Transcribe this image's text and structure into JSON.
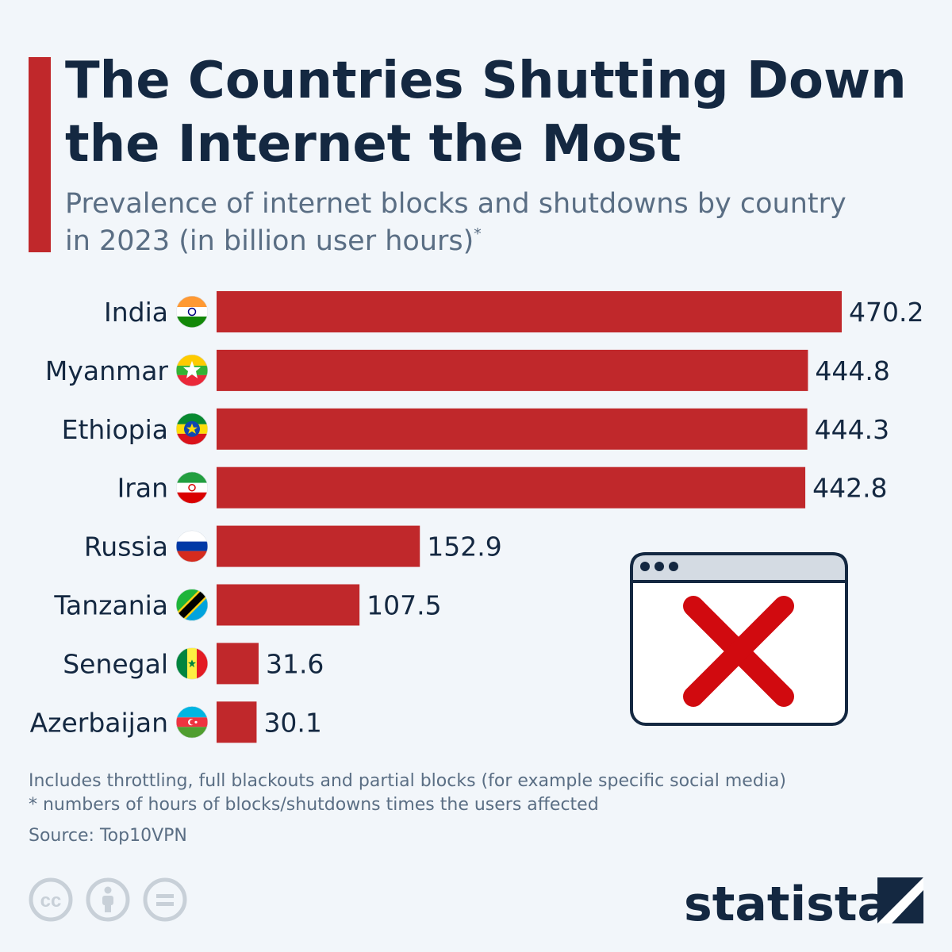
{
  "header": {
    "title": "The Countries Shutting Down the Internet the Most",
    "subtitle": "Prevalence of internet blocks and shutdowns by country in 2023 (in billion user hours)",
    "subtitle_mark": "*"
  },
  "chart_data": {
    "type": "bar",
    "orientation": "horizontal",
    "title": "The Countries Shutting Down the Internet the Most",
    "subtitle": "Prevalence of internet blocks and shutdowns by country in 2023 (in billion user hours)*",
    "categories": [
      "India",
      "Myanmar",
      "Ethiopia",
      "Iran",
      "Russia",
      "Tanzania",
      "Senegal",
      "Azerbaijan"
    ],
    "values": [
      470.2,
      444.8,
      444.3,
      442.8,
      152.9,
      107.5,
      31.6,
      30.1
    ],
    "value_labels": [
      "470.2",
      "444.8",
      "444.3",
      "442.8",
      "152.9",
      "107.5",
      "31.6",
      "30.1"
    ],
    "flag_icons": [
      "india-flag-icon",
      "myanmar-flag-icon",
      "ethiopia-flag-icon",
      "iran-flag-icon",
      "russia-flag-icon",
      "tanzania-flag-icon",
      "senegal-flag-icon",
      "azerbaijan-flag-icon"
    ],
    "xlim": [
      0,
      470.2
    ],
    "bar_color": "#c0282b",
    "grid": false,
    "legend": "none"
  },
  "illustration": {
    "icon": "blocked-browser-window-icon",
    "cross_color": "#d10a0f"
  },
  "footer": {
    "note": "Includes throttling, full blackouts and partial blocks (for example specific social media)",
    "asterisk_note": "* numbers of hours of blocks/shutdowns times the users affected",
    "source": "Source: Top10VPN",
    "license_icons": [
      "creative-commons-icon",
      "attribution-icon",
      "no-derivatives-icon"
    ],
    "brand": "statista"
  },
  "colors": {
    "title": "#142841",
    "subtitle": "#5a6e84",
    "accent": "#c0282b",
    "background": "#f2f6fa"
  }
}
